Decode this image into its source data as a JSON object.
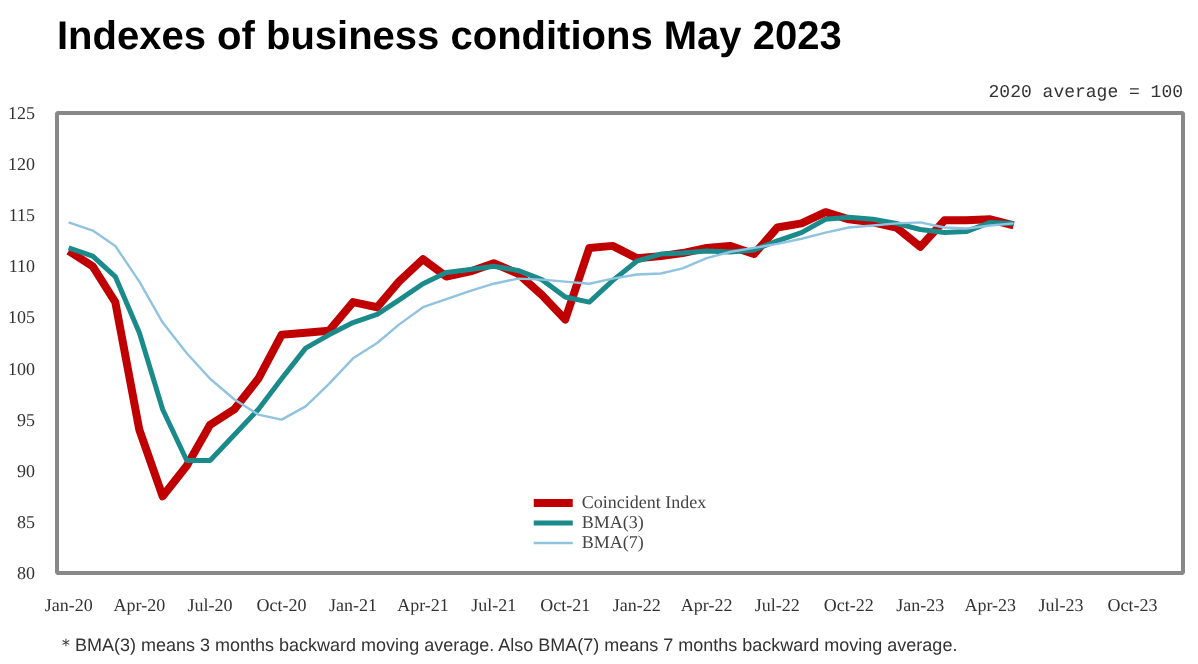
{
  "chart_data": {
    "type": "line",
    "title": "Indexes of business conditions May 2023",
    "annotations": [
      "2020 average = 100",
      "＊BMA(3) means 3 months backward moving average. Also BMA(7) means 7 months backward moving average."
    ],
    "x": [
      "2020-01",
      "2020-02",
      "2020-03",
      "2020-04",
      "2020-05",
      "2020-06",
      "2020-07",
      "2020-08",
      "2020-09",
      "2020-10",
      "2020-11",
      "2020-12",
      "2021-01",
      "2021-02",
      "2021-03",
      "2021-04",
      "2021-05",
      "2021-06",
      "2021-07",
      "2021-08",
      "2021-09",
      "2021-10",
      "2021-11",
      "2021-12",
      "2022-01",
      "2022-02",
      "2022-03",
      "2022-04",
      "2022-05",
      "2022-06",
      "2022-07",
      "2022-08",
      "2022-09",
      "2022-10",
      "2022-11",
      "2022-12",
      "2023-01",
      "2023-02",
      "2023-03",
      "2023-04",
      "2023-05"
    ],
    "series": [
      {
        "name": "Coincident Index",
        "color": "#c00000",
        "values": [
          111.5,
          110,
          106.5,
          94,
          87.5,
          90.5,
          94.5,
          96,
          99,
          103.3,
          103.5,
          103.7,
          106.5,
          106,
          108.5,
          110.7,
          109,
          109.5,
          110.3,
          109.3,
          107.2,
          104.8,
          111.8,
          112,
          110.8,
          111,
          111.3,
          111.8,
          112,
          111.2,
          113.8,
          114.2,
          115.3,
          114.6,
          114.3,
          113.8,
          111.9,
          114.5,
          114.5,
          114.6,
          114
        ]
      },
      {
        "name": "BMA(3)",
        "color": "#1a8a8a",
        "values": [
          111.8,
          111,
          109,
          103.5,
          96,
          91,
          91,
          93.5,
          96,
          99,
          102,
          103.3,
          104.5,
          105.3,
          106.7,
          108.3,
          109.4,
          109.7,
          110,
          109.6,
          108.7,
          107,
          106.5,
          108.6,
          110.5,
          111.2,
          111.3,
          111.5,
          111.4,
          111.6,
          112.5,
          113.3,
          114.6,
          114.8,
          114.6,
          114.2,
          113.6,
          113.3,
          113.4,
          114.3,
          114.2
        ]
      },
      {
        "name": "BMA(7)",
        "color": "#8fc3e0",
        "values": [
          114.3,
          113.5,
          112,
          108.5,
          104.5,
          101.5,
          99,
          97,
          95.5,
          95,
          96.3,
          98.5,
          101,
          102.5,
          104.3,
          106,
          106.8,
          107.6,
          108.3,
          108.8,
          108.7,
          108.5,
          108.3,
          108.8,
          109.2,
          109.3,
          109.8,
          110.8,
          111.4,
          111.8,
          112.2,
          112.7,
          113.3,
          113.8,
          114,
          114.2,
          114.3,
          113.8,
          113.7,
          114,
          114.2
        ]
      }
    ],
    "xlim": [
      "2019-12-17",
      "2023-12-05"
    ],
    "xticks": [
      {
        "value": "2020-01",
        "label": "Jan-20"
      },
      {
        "value": "2020-04",
        "label": "Apr-20"
      },
      {
        "value": "2020-07",
        "label": "Jul-20"
      },
      {
        "value": "2020-10",
        "label": "Oct-20"
      },
      {
        "value": "2021-01",
        "label": "Jan-21"
      },
      {
        "value": "2021-04",
        "label": "Apr-21"
      },
      {
        "value": "2021-07",
        "label": "Jul-21"
      },
      {
        "value": "2021-10",
        "label": "Oct-21"
      },
      {
        "value": "2022-01",
        "label": "Jan-22"
      },
      {
        "value": "2022-04",
        "label": "Apr-22"
      },
      {
        "value": "2022-07",
        "label": "Jul-22"
      },
      {
        "value": "2022-10",
        "label": "Oct-22"
      },
      {
        "value": "2023-01",
        "label": "Jan-23"
      },
      {
        "value": "2023-04",
        "label": "Apr-23"
      },
      {
        "value": "2023-07",
        "label": "Jul-23"
      },
      {
        "value": "2023-10",
        "label": "Oct-23"
      }
    ],
    "ylim": [
      80,
      125
    ],
    "yticks": [
      80,
      85,
      90,
      95,
      100,
      105,
      110,
      115,
      120,
      125
    ],
    "grid": false,
    "legend": "bottom",
    "marker": "none",
    "line_style": "solid"
  }
}
